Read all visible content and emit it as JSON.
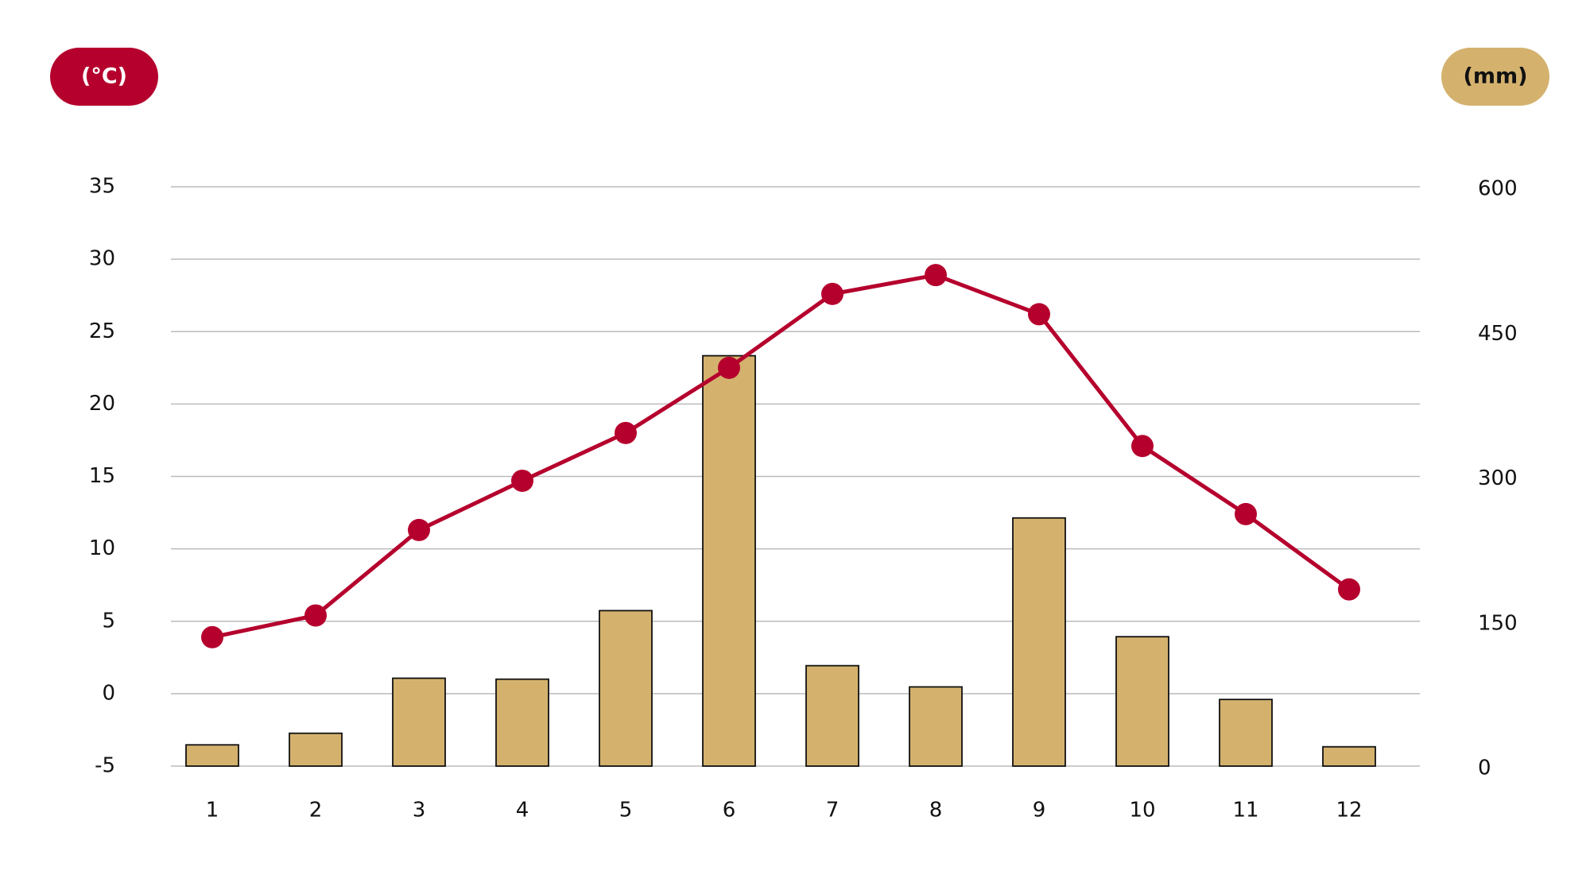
{
  "chart_data": {
    "type": "combo",
    "y_label": "(°C)",
    "y2_label": "(mm)",
    "categories": [
      "1",
      "2",
      "3",
      "4",
      "5",
      "6",
      "7",
      "8",
      "9",
      "10",
      "11",
      "12"
    ],
    "ylim": [
      -5,
      35
    ],
    "yticks": [
      -5,
      0,
      5,
      10,
      15,
      20,
      25,
      30,
      35
    ],
    "y2lim": [
      0,
      600
    ],
    "y2ticks": [
      0,
      150,
      300,
      450,
      600
    ],
    "grid": true,
    "series": [
      {
        "type": "bar",
        "axis": "y2",
        "color": "#d4b26e",
        "values": [
          22,
          34,
          91,
          90,
          161,
          425,
          104,
          82,
          257,
          134,
          69,
          20
        ]
      },
      {
        "type": "line",
        "axis": "y",
        "color": "#b5002d",
        "values": [
          3.9,
          5.4,
          11.3,
          14.7,
          18.0,
          22.5,
          27.6,
          28.9,
          26.2,
          17.1,
          12.4,
          7.2
        ]
      }
    ]
  }
}
